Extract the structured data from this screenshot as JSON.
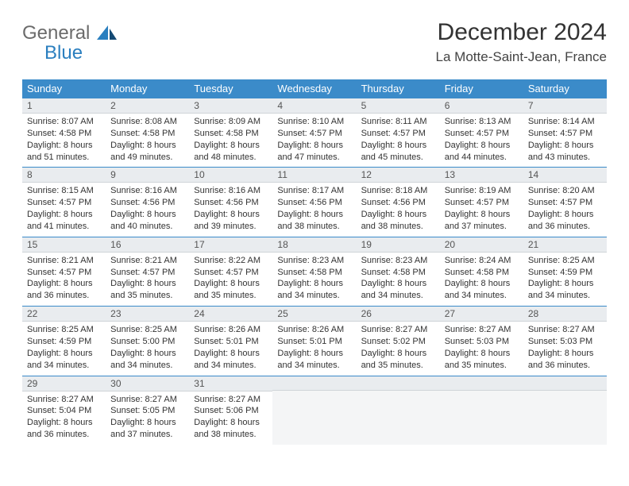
{
  "logo": {
    "text1": "General",
    "text2": "Blue"
  },
  "title": {
    "month": "December 2024",
    "location": "La Motte-Saint-Jean, France"
  },
  "colors": {
    "header_bg": "#3b8bc9",
    "header_text": "#ffffff",
    "daynum_bg": "#e9ecef",
    "cell_border": "#3b8bc9",
    "logo_gray": "#6b6b6b",
    "logo_blue": "#2b7fbf"
  },
  "weekdays": [
    "Sunday",
    "Monday",
    "Tuesday",
    "Wednesday",
    "Thursday",
    "Friday",
    "Saturday"
  ],
  "layout": {
    "first_weekday_index": 0,
    "trailing_empty": 4
  },
  "days": [
    {
      "n": 1,
      "sunrise": "8:07 AM",
      "sunset": "4:58 PM",
      "daylight": "8 hours and 51 minutes."
    },
    {
      "n": 2,
      "sunrise": "8:08 AM",
      "sunset": "4:58 PM",
      "daylight": "8 hours and 49 minutes."
    },
    {
      "n": 3,
      "sunrise": "8:09 AM",
      "sunset": "4:58 PM",
      "daylight": "8 hours and 48 minutes."
    },
    {
      "n": 4,
      "sunrise": "8:10 AM",
      "sunset": "4:57 PM",
      "daylight": "8 hours and 47 minutes."
    },
    {
      "n": 5,
      "sunrise": "8:11 AM",
      "sunset": "4:57 PM",
      "daylight": "8 hours and 45 minutes."
    },
    {
      "n": 6,
      "sunrise": "8:13 AM",
      "sunset": "4:57 PM",
      "daylight": "8 hours and 44 minutes."
    },
    {
      "n": 7,
      "sunrise": "8:14 AM",
      "sunset": "4:57 PM",
      "daylight": "8 hours and 43 minutes."
    },
    {
      "n": 8,
      "sunrise": "8:15 AM",
      "sunset": "4:57 PM",
      "daylight": "8 hours and 41 minutes."
    },
    {
      "n": 9,
      "sunrise": "8:16 AM",
      "sunset": "4:56 PM",
      "daylight": "8 hours and 40 minutes."
    },
    {
      "n": 10,
      "sunrise": "8:16 AM",
      "sunset": "4:56 PM",
      "daylight": "8 hours and 39 minutes."
    },
    {
      "n": 11,
      "sunrise": "8:17 AM",
      "sunset": "4:56 PM",
      "daylight": "8 hours and 38 minutes."
    },
    {
      "n": 12,
      "sunrise": "8:18 AM",
      "sunset": "4:56 PM",
      "daylight": "8 hours and 38 minutes."
    },
    {
      "n": 13,
      "sunrise": "8:19 AM",
      "sunset": "4:57 PM",
      "daylight": "8 hours and 37 minutes."
    },
    {
      "n": 14,
      "sunrise": "8:20 AM",
      "sunset": "4:57 PM",
      "daylight": "8 hours and 36 minutes."
    },
    {
      "n": 15,
      "sunrise": "8:21 AM",
      "sunset": "4:57 PM",
      "daylight": "8 hours and 36 minutes."
    },
    {
      "n": 16,
      "sunrise": "8:21 AM",
      "sunset": "4:57 PM",
      "daylight": "8 hours and 35 minutes."
    },
    {
      "n": 17,
      "sunrise": "8:22 AM",
      "sunset": "4:57 PM",
      "daylight": "8 hours and 35 minutes."
    },
    {
      "n": 18,
      "sunrise": "8:23 AM",
      "sunset": "4:58 PM",
      "daylight": "8 hours and 34 minutes."
    },
    {
      "n": 19,
      "sunrise": "8:23 AM",
      "sunset": "4:58 PM",
      "daylight": "8 hours and 34 minutes."
    },
    {
      "n": 20,
      "sunrise": "8:24 AM",
      "sunset": "4:58 PM",
      "daylight": "8 hours and 34 minutes."
    },
    {
      "n": 21,
      "sunrise": "8:25 AM",
      "sunset": "4:59 PM",
      "daylight": "8 hours and 34 minutes."
    },
    {
      "n": 22,
      "sunrise": "8:25 AM",
      "sunset": "4:59 PM",
      "daylight": "8 hours and 34 minutes."
    },
    {
      "n": 23,
      "sunrise": "8:25 AM",
      "sunset": "5:00 PM",
      "daylight": "8 hours and 34 minutes."
    },
    {
      "n": 24,
      "sunrise": "8:26 AM",
      "sunset": "5:01 PM",
      "daylight": "8 hours and 34 minutes."
    },
    {
      "n": 25,
      "sunrise": "8:26 AM",
      "sunset": "5:01 PM",
      "daylight": "8 hours and 34 minutes."
    },
    {
      "n": 26,
      "sunrise": "8:27 AM",
      "sunset": "5:02 PM",
      "daylight": "8 hours and 35 minutes."
    },
    {
      "n": 27,
      "sunrise": "8:27 AM",
      "sunset": "5:03 PM",
      "daylight": "8 hours and 35 minutes."
    },
    {
      "n": 28,
      "sunrise": "8:27 AM",
      "sunset": "5:03 PM",
      "daylight": "8 hours and 36 minutes."
    },
    {
      "n": 29,
      "sunrise": "8:27 AM",
      "sunset": "5:04 PM",
      "daylight": "8 hours and 36 minutes."
    },
    {
      "n": 30,
      "sunrise": "8:27 AM",
      "sunset": "5:05 PM",
      "daylight": "8 hours and 37 minutes."
    },
    {
      "n": 31,
      "sunrise": "8:27 AM",
      "sunset": "5:06 PM",
      "daylight": "8 hours and 38 minutes."
    }
  ],
  "labels": {
    "sunrise": "Sunrise: ",
    "sunset": "Sunset: ",
    "daylight": "Daylight: "
  }
}
